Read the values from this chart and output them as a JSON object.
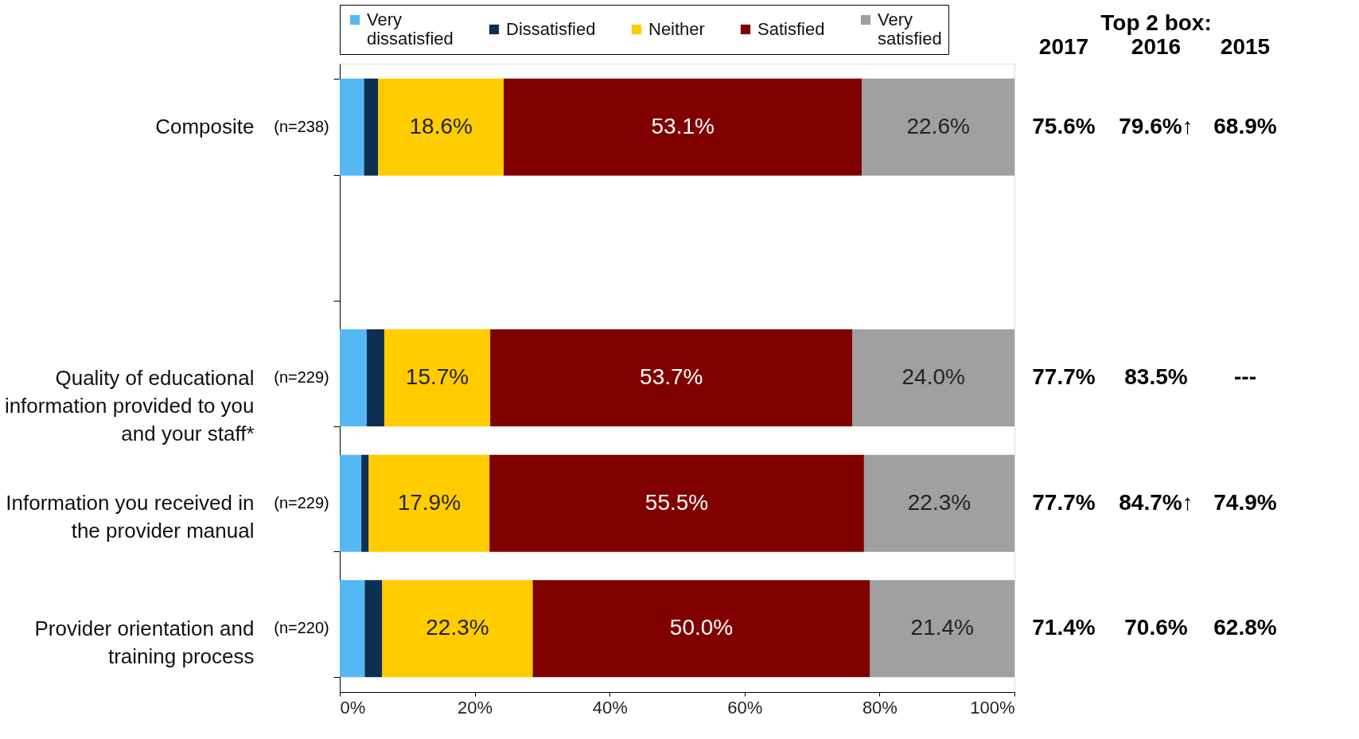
{
  "chart_data": {
    "type": "bar",
    "orientation": "horizontal",
    "stacked": true,
    "categories": [
      "Composite",
      null,
      "Quality of educational information provided to you and your staff*",
      "Information you received in the provider manual",
      "Provider orientation and training process"
    ],
    "series": [
      {
        "name": "Very dissatisfied",
        "color": "#55b8f5",
        "values": [
          3.6,
          null,
          4.0,
          3.2,
          3.7
        ]
      },
      {
        "name": "Dissatisfied",
        "color": "#0c2f52",
        "values": [
          2.1,
          null,
          2.6,
          1.1,
          2.6
        ]
      },
      {
        "name": "Neither",
        "color": "#ffcc00",
        "values": [
          18.6,
          null,
          15.7,
          17.9,
          22.3
        ],
        "value_labels": [
          "18.6%",
          null,
          "15.7%",
          "17.9%",
          "22.3%"
        ]
      },
      {
        "name": "Satisfied",
        "color": "#800000",
        "values": [
          53.1,
          null,
          53.7,
          55.5,
          50.0
        ],
        "value_labels": [
          "53.1%",
          null,
          "53.7%",
          "55.5%",
          "50.0%"
        ]
      },
      {
        "name": "Very satisfied",
        "color": "#a0a0a0",
        "values": [
          22.6,
          null,
          24.0,
          22.3,
          21.4
        ],
        "value_labels": [
          "22.6%",
          null,
          "24.0%",
          "22.3%",
          "21.4%"
        ]
      }
    ],
    "xlim": [
      0,
      100
    ],
    "xticks": [
      {
        "value": 0,
        "label": "0%"
      },
      {
        "value": 20,
        "label": "20%"
      },
      {
        "value": 40,
        "label": "40%"
      },
      {
        "value": 60,
        "label": "60%"
      },
      {
        "value": 80,
        "label": "80%"
      },
      {
        "value": 100,
        "label": "100%"
      }
    ],
    "grid": false,
    "legend": "top",
    "annotations": [
      "Top 2 box:",
      "2017",
      "2016",
      "2015",
      "(n=238)",
      "75.6%",
      "79.6%↑",
      "68.9%",
      "(n=229)",
      "77.7%",
      "83.5%",
      "---",
      "(n=229)",
      "77.7%",
      "84.7%↑",
      "74.9%",
      "(n=220)",
      "71.4%",
      "70.6%",
      "62.8%"
    ]
  }
}
